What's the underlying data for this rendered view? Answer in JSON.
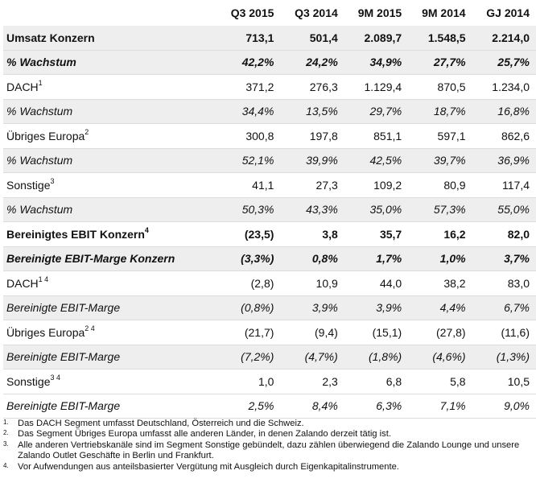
{
  "table": {
    "columns": [
      "",
      "Q3 2015",
      "Q3 2014",
      "9M 2015",
      "9M 2014",
      "GJ 2014"
    ],
    "rows": [
      {
        "label": "Umsatz Konzern",
        "sup": "",
        "values": [
          "713,1",
          "501,4",
          "2.089,7",
          "1.548,5",
          "2.214,0"
        ]
      },
      {
        "label": "% Wachstum",
        "sup": "",
        "values": [
          "42,2%",
          "24,2%",
          "34,9%",
          "27,7%",
          "25,7%"
        ]
      },
      {
        "label": "DACH",
        "sup": "1",
        "values": [
          "371,2",
          "276,3",
          "1.129,4",
          "870,5",
          "1.234,0"
        ]
      },
      {
        "label": "% Wachstum",
        "sup": "",
        "values": [
          "34,4%",
          "13,5%",
          "29,7%",
          "18,7%",
          "16,8%"
        ]
      },
      {
        "label": "Übriges Europa",
        "sup": "2",
        "values": [
          "300,8",
          "197,8",
          "851,1",
          "597,1",
          "862,6"
        ]
      },
      {
        "label": "% Wachstum",
        "sup": "",
        "values": [
          "52,1%",
          "39,9%",
          "42,5%",
          "39,7%",
          "36,9%"
        ]
      },
      {
        "label": "Sonstige",
        "sup": "3",
        "values": [
          "41,1",
          "27,3",
          "109,2",
          "80,9",
          "117,4"
        ]
      },
      {
        "label": "% Wachstum",
        "sup": "",
        "values": [
          "50,3%",
          "43,3%",
          "35,0%",
          "57,3%",
          "55,0%"
        ]
      },
      {
        "label": "Bereinigtes EBIT Konzern",
        "sup": "4",
        "values": [
          "(23,5)",
          "3,8",
          "35,7",
          "16,2",
          "82,0"
        ]
      },
      {
        "label": "Bereinigte EBIT-Marge Konzern",
        "sup": "",
        "values": [
          "(3,3%)",
          "0,8%",
          "1,7%",
          "1,0%",
          "3,7%"
        ]
      },
      {
        "label": "DACH",
        "sup": "1 4",
        "values": [
          "(2,8)",
          "10,9",
          "44,0",
          "38,2",
          "83,0"
        ]
      },
      {
        "label": "Bereinigte EBIT-Marge",
        "sup": "",
        "values": [
          "(0,8%)",
          "3,9%",
          "3,9%",
          "4,4%",
          "6,7%"
        ]
      },
      {
        "label": "Übriges Europa",
        "sup": "2 4",
        "values": [
          "(21,7)",
          "(9,4)",
          "(15,1)",
          "(27,8)",
          "(11,6)"
        ]
      },
      {
        "label": "Bereinigte EBIT-Marge",
        "sup": "",
        "values": [
          "(7,2%)",
          "(4,7%)",
          "(1,8%)",
          "(4,6%)",
          "(1,3%)"
        ]
      },
      {
        "label": "Sonstige",
        "sup": "3 4",
        "values": [
          "1,0",
          "2,3",
          "6,8",
          "5,8",
          "10,5"
        ]
      },
      {
        "label": "Bereinigte EBIT-Marge",
        "sup": "",
        "values": [
          "2,5%",
          "8,4%",
          "6,3%",
          "7,1%",
          "9,0%"
        ]
      }
    ]
  },
  "footnotes": [
    {
      "num": "1.",
      "text": "Das DACH Segment umfasst Deutschland, Österreich und die Schweiz."
    },
    {
      "num": "2.",
      "text": "Das Segment Übriges Europa umfasst alle anderen Länder, in denen Zalando derzeit tätig ist."
    },
    {
      "num": "3.",
      "text": "Alle anderen Vertriebskanäle sind im Segment Sonstige gebündelt, dazu zählen überwiegend die Zalando Lounge und unsere Zalando Outlet Geschäfte in Berlin und Frankfurt."
    },
    {
      "num": "4.",
      "text": "Vor Aufwendungen aus anteilsbasierter Vergütung mit Ausgleich durch Eigenkapitalinstrumente."
    }
  ]
}
